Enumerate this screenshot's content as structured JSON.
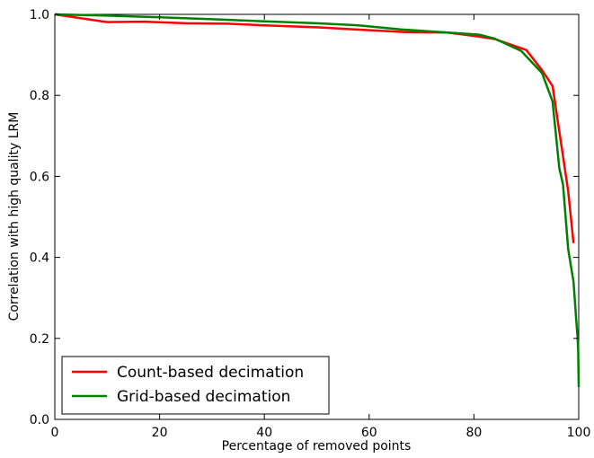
{
  "chart_data": {
    "type": "line",
    "title": "",
    "xlabel": "Percentage of removed points",
    "ylabel": "Correlation with high quality LRM",
    "xlim": [
      0,
      100
    ],
    "ylim": [
      0.0,
      1.0
    ],
    "xticks": [
      0,
      20,
      40,
      60,
      80,
      100
    ],
    "xtick_labels": [
      "0",
      "20",
      "40",
      "60",
      "80",
      "100"
    ],
    "yticks": [
      0.0,
      0.2,
      0.4,
      0.6,
      0.8,
      1.0
    ],
    "ytick_labels": [
      "0.0",
      "0.2",
      "0.4",
      "0.6",
      "0.8",
      "1.0"
    ],
    "grid": false,
    "legend_position": "lower-left",
    "series": [
      {
        "name": "Count-based decimation",
        "color": "#ff0000",
        "x": [
          0,
          10,
          17,
          25,
          33,
          40,
          50,
          60,
          67,
          75,
          81,
          84,
          90,
          93,
          95,
          97,
          98,
          99
        ],
        "y": [
          1.0,
          0.981,
          0.982,
          0.978,
          0.977,
          0.973,
          0.968,
          0.961,
          0.956,
          0.955,
          0.945,
          0.939,
          0.912,
          0.862,
          0.823,
          0.65,
          0.563,
          0.435
        ]
      },
      {
        "name": "Grid-based decimation",
        "color": "#008000",
        "x": [
          0,
          10,
          20,
          30,
          40,
          50,
          58,
          66,
          75,
          81,
          84,
          89,
          93,
          95,
          96.3,
          97,
          98,
          99,
          99.5,
          99.8,
          99.9,
          100
        ],
        "y": [
          1.0,
          0.997,
          0.993,
          0.988,
          0.983,
          0.978,
          0.973,
          0.963,
          0.955,
          0.95,
          0.94,
          0.91,
          0.855,
          0.785,
          0.62,
          0.58,
          0.42,
          0.34,
          0.25,
          0.2,
          0.17,
          0.08
        ]
      }
    ]
  }
}
